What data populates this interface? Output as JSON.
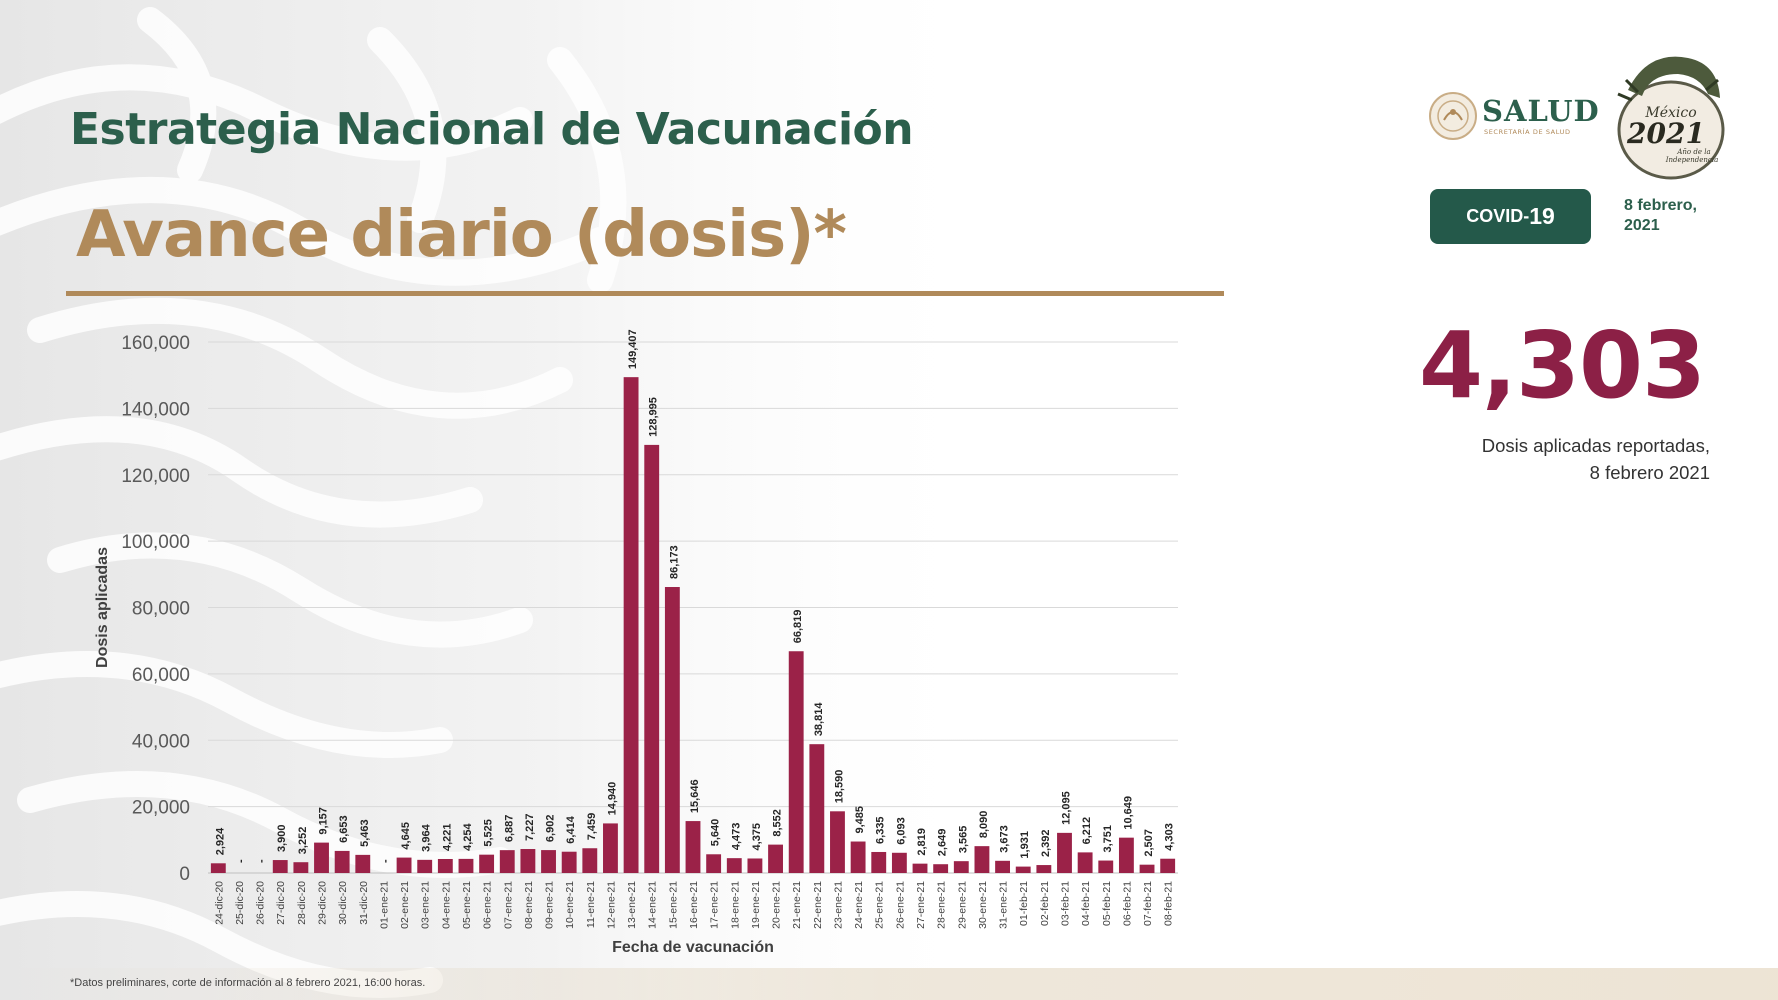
{
  "header": {
    "title": "Estrategia Nacional de Vacunación",
    "subtitle": "Avance diario (dosis)*"
  },
  "logos": {
    "salud": "SALUD",
    "salud_sub": "SECRETARÍA DE SALUD",
    "mexico_top": "México",
    "mexico_year": "2021",
    "mexico_caption": "Año de la Independencia"
  },
  "badge": {
    "covid_prefix": "COVID-",
    "covid_suffix": "19"
  },
  "report": {
    "date_line1": "8 febrero,",
    "date_line2": "2021"
  },
  "highlight": {
    "value": "4,303",
    "caption_line1": "Dosis aplicadas reportadas,",
    "caption_line2": "8 febrero 2021"
  },
  "footnote": "*Datos preliminares, corte de información al 8 febrero 2021, 16:00 horas.",
  "colors": {
    "bar": "#9b2248",
    "title_green": "#2c5f4c",
    "title_gold": "#b08a5a",
    "highlight": "#8c2046"
  },
  "chart_data": {
    "type": "bar",
    "title": "",
    "xlabel": "Fecha de vacunación",
    "ylabel": "Dosis aplicadas",
    "ylim": [
      0,
      160000
    ],
    "yticks": [
      0,
      20000,
      40000,
      60000,
      80000,
      100000,
      120000,
      140000,
      160000
    ],
    "ytick_labels": [
      "0",
      "20,000",
      "40,000",
      "60,000",
      "80,000",
      "100,000",
      "120,000",
      "140,000",
      "160,000"
    ],
    "grid": true,
    "categories": [
      "24-dic-20",
      "25-dic-20",
      "26-dic-20",
      "27-dic-20",
      "28-dic-20",
      "29-dic-20",
      "30-dic-20",
      "31-dic-20",
      "01-ene-21",
      "02-ene-21",
      "03-ene-21",
      "04-ene-21",
      "05-ene-21",
      "06-ene-21",
      "07-ene-21",
      "08-ene-21",
      "09-ene-21",
      "10-ene-21",
      "11-ene-21",
      "12-ene-21",
      "13-ene-21",
      "14-ene-21",
      "15-ene-21",
      "16-ene-21",
      "17-ene-21",
      "18-ene-21",
      "19-ene-21",
      "20-ene-21",
      "21-ene-21",
      "22-ene-21",
      "23-ene-21",
      "24-ene-21",
      "25-ene-21",
      "26-ene-21",
      "27-ene-21",
      "28-ene-21",
      "29-ene-21",
      "30-ene-21",
      "31-ene-21",
      "01-feb-21",
      "02-feb-21",
      "03-feb-21",
      "04-feb-21",
      "05-feb-21",
      "06-feb-21",
      "07-feb-21",
      "08-feb-21"
    ],
    "values": [
      2924,
      0,
      0,
      3900,
      3252,
      9157,
      6653,
      5463,
      0,
      4645,
      3964,
      4221,
      4254,
      5525,
      6887,
      7227,
      6902,
      6414,
      7459,
      14940,
      149407,
      128995,
      86173,
      15646,
      5640,
      4473,
      4375,
      8552,
      66819,
      38814,
      18590,
      9485,
      6335,
      6093,
      2819,
      2649,
      3565,
      8090,
      3673,
      1931,
      2392,
      12095,
      6212,
      3751,
      10649,
      2507,
      4303
    ],
    "data_labels": [
      "2,924",
      "-",
      "-",
      "3,900",
      "3,252",
      "9,157",
      "6,653",
      "5,463",
      "-",
      "4,645",
      "3,964",
      "4,221",
      "4,254",
      "5,525",
      "6,887",
      "7,227",
      "6,902",
      "6,414",
      "7,459",
      "14,940",
      "149,407",
      "128,995",
      "86,173",
      "15,646",
      "5,640",
      "4,473",
      "4,375",
      "8,552",
      "66,819",
      "38,814",
      "18,590",
      "9,485",
      "6,335",
      "6,093",
      "2,819",
      "2,649",
      "3,565",
      "8,090",
      "3,673",
      "1,931",
      "2,392",
      "12,095",
      "6,212",
      "3,751",
      "10,649",
      "2,507",
      "4,303"
    ]
  }
}
